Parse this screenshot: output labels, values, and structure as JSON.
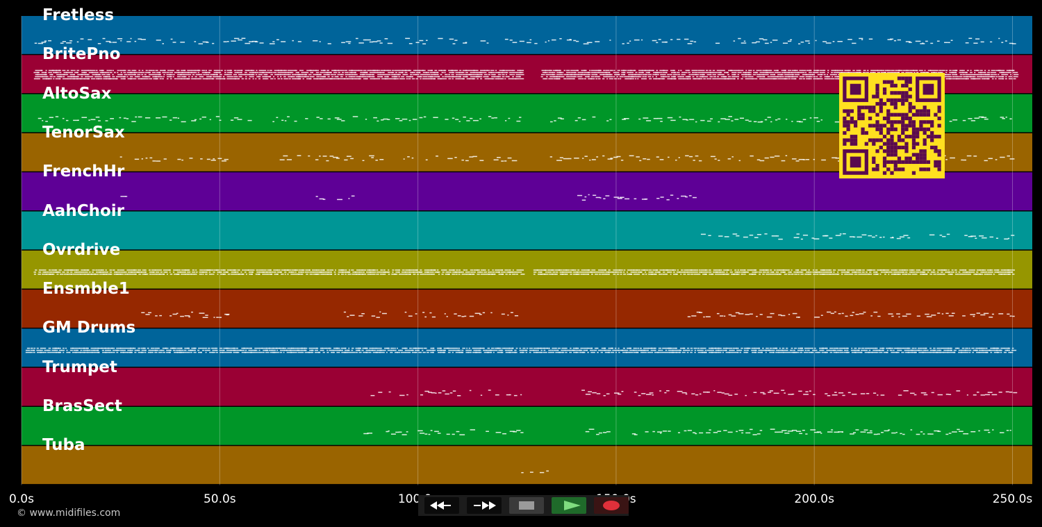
{
  "tracks": [
    {
      "name": "Fretless",
      "color": "#00649a"
    },
    {
      "name": "BritePno",
      "color": "#9a0034"
    },
    {
      "name": "AltoSax",
      "color": "#009628"
    },
    {
      "name": "TenorSax",
      "color": "#9a6400"
    },
    {
      "name": "FrenchHr",
      "color": "#5e0096"
    },
    {
      "name": "AahChoir",
      "color": "#009696"
    },
    {
      "name": "Ovrdrive",
      "color": "#969600"
    },
    {
      "name": "Ensmble1",
      "color": "#962800"
    },
    {
      "name": "GM Drums",
      "color": "#00649a"
    },
    {
      "name": "Trumpet",
      "color": "#9a0034"
    },
    {
      "name": "BrasSect",
      "color": "#009628"
    },
    {
      "name": "Tuba",
      "color": "#9a6400"
    }
  ],
  "timeline": {
    "ticks": [
      "0.0s",
      "50.0s",
      "100.0s",
      "150.0s",
      "200.0s",
      "250.0s"
    ],
    "duration_s": 255
  },
  "copyright": "© www.midifiles.com",
  "transport": {
    "buttons": [
      {
        "name": "rewind-button",
        "icon": "rewind-icon"
      },
      {
        "name": "fast-forward-button",
        "icon": "fast-forward-icon"
      },
      {
        "name": "stop-button",
        "icon": "stop-icon"
      },
      {
        "name": "play-button",
        "icon": "play-icon"
      },
      {
        "name": "record-button",
        "icon": "record-icon"
      }
    ]
  },
  "qr_code": {
    "fg": "#5a0a4e",
    "bg": "#ffe020"
  },
  "activity": [
    [
      [
        3,
        250
      ]
    ],
    [
      [
        3,
        126
      ],
      [
        131,
        250
      ]
    ],
    [
      [
        3,
        126
      ],
      [
        133,
        250
      ]
    ],
    [
      [
        23,
        51
      ],
      [
        63,
        126
      ],
      [
        133,
        250
      ]
    ],
    [
      [
        23,
        26
      ],
      [
        74,
        84
      ],
      [
        140,
        170
      ]
    ],
    [
      [
        171,
        250
      ]
    ],
    [
      [
        3,
        126
      ],
      [
        129,
        250
      ]
    ],
    [
      [
        30,
        53
      ],
      [
        81,
        126
      ],
      [
        168,
        250
      ]
    ],
    [
      [
        1,
        250
      ]
    ],
    [
      [
        86,
        126
      ],
      [
        141,
        250
      ]
    ],
    [
      [
        86,
        126
      ],
      [
        141,
        250
      ]
    ],
    [
      [
        126,
        134
      ]
    ]
  ]
}
